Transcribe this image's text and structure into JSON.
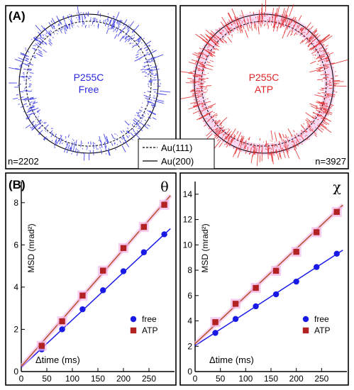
{
  "panel_a": {
    "label": "(A)",
    "left": {
      "title_line1": "P255C",
      "title_line2": "Free",
      "count": "n=2202",
      "color": "#2a2ae0"
    },
    "right": {
      "title_line1": "P255C",
      "title_line2": "ATP",
      "count": "n=3927",
      "color": "#e02424"
    },
    "legend": [
      {
        "style": "dashed",
        "label": "Au(111)"
      },
      {
        "style": "solid",
        "label": "Au(200)"
      }
    ]
  },
  "panel_b": {
    "label": "(B)"
  },
  "colors": {
    "free": "#1a1ae6",
    "atp": "#b22222",
    "atp_line": "#b8502a",
    "glow": "#f2b8e8"
  },
  "chart_data": [
    {
      "type": "scatter",
      "symbol": "θ",
      "xlabel": "Δtime (ms)",
      "ylabel": "MSD (mrad²)",
      "xlim": [
        0,
        300
      ],
      "ylim": [
        0,
        9
      ],
      "xticks": [
        0,
        50,
        100,
        150,
        200,
        250
      ],
      "yticks": [
        0,
        2,
        4,
        6,
        8
      ],
      "legend_position": "bottom-right",
      "series": [
        {
          "name": "free",
          "x": [
            40,
            80,
            120,
            160,
            200,
            240,
            280
          ],
          "values": [
            1.05,
            2.0,
            2.95,
            3.85,
            4.75,
            5.65,
            6.5
          ],
          "fit": [
            0.2,
            0.0225
          ]
        },
        {
          "name": "ATP",
          "x": [
            40,
            80,
            120,
            160,
            200,
            240,
            280
          ],
          "values": [
            1.22,
            2.38,
            3.6,
            4.78,
            5.85,
            6.85,
            7.9
          ],
          "fit": [
            0.25,
            0.0277
          ]
        }
      ]
    },
    {
      "type": "scatter",
      "symbol": "χ",
      "xlabel": "Δtime (ms)",
      "ylabel": "MSD (mrad²)",
      "xlim": [
        0,
        300
      ],
      "ylim": [
        0,
        15
      ],
      "xticks": [
        0,
        50,
        100,
        150,
        200,
        250
      ],
      "yticks": [
        0,
        2,
        4,
        6,
        8,
        10,
        12,
        14
      ],
      "legend_position": "bottom-right",
      "series": [
        {
          "name": "free",
          "x": [
            40,
            80,
            120,
            160,
            200,
            240,
            280
          ],
          "values": [
            3.05,
            4.15,
            5.15,
            6.1,
            7.1,
            8.25,
            9.3
          ],
          "fit": [
            2.05,
            0.0258
          ]
        },
        {
          "name": "ATP",
          "x": [
            40,
            80,
            120,
            160,
            200,
            240,
            280
          ],
          "values": [
            3.9,
            5.35,
            6.6,
            7.95,
            9.45,
            11.0,
            12.6
          ],
          "fit": [
            2.2,
            0.0375
          ]
        }
      ]
    }
  ]
}
